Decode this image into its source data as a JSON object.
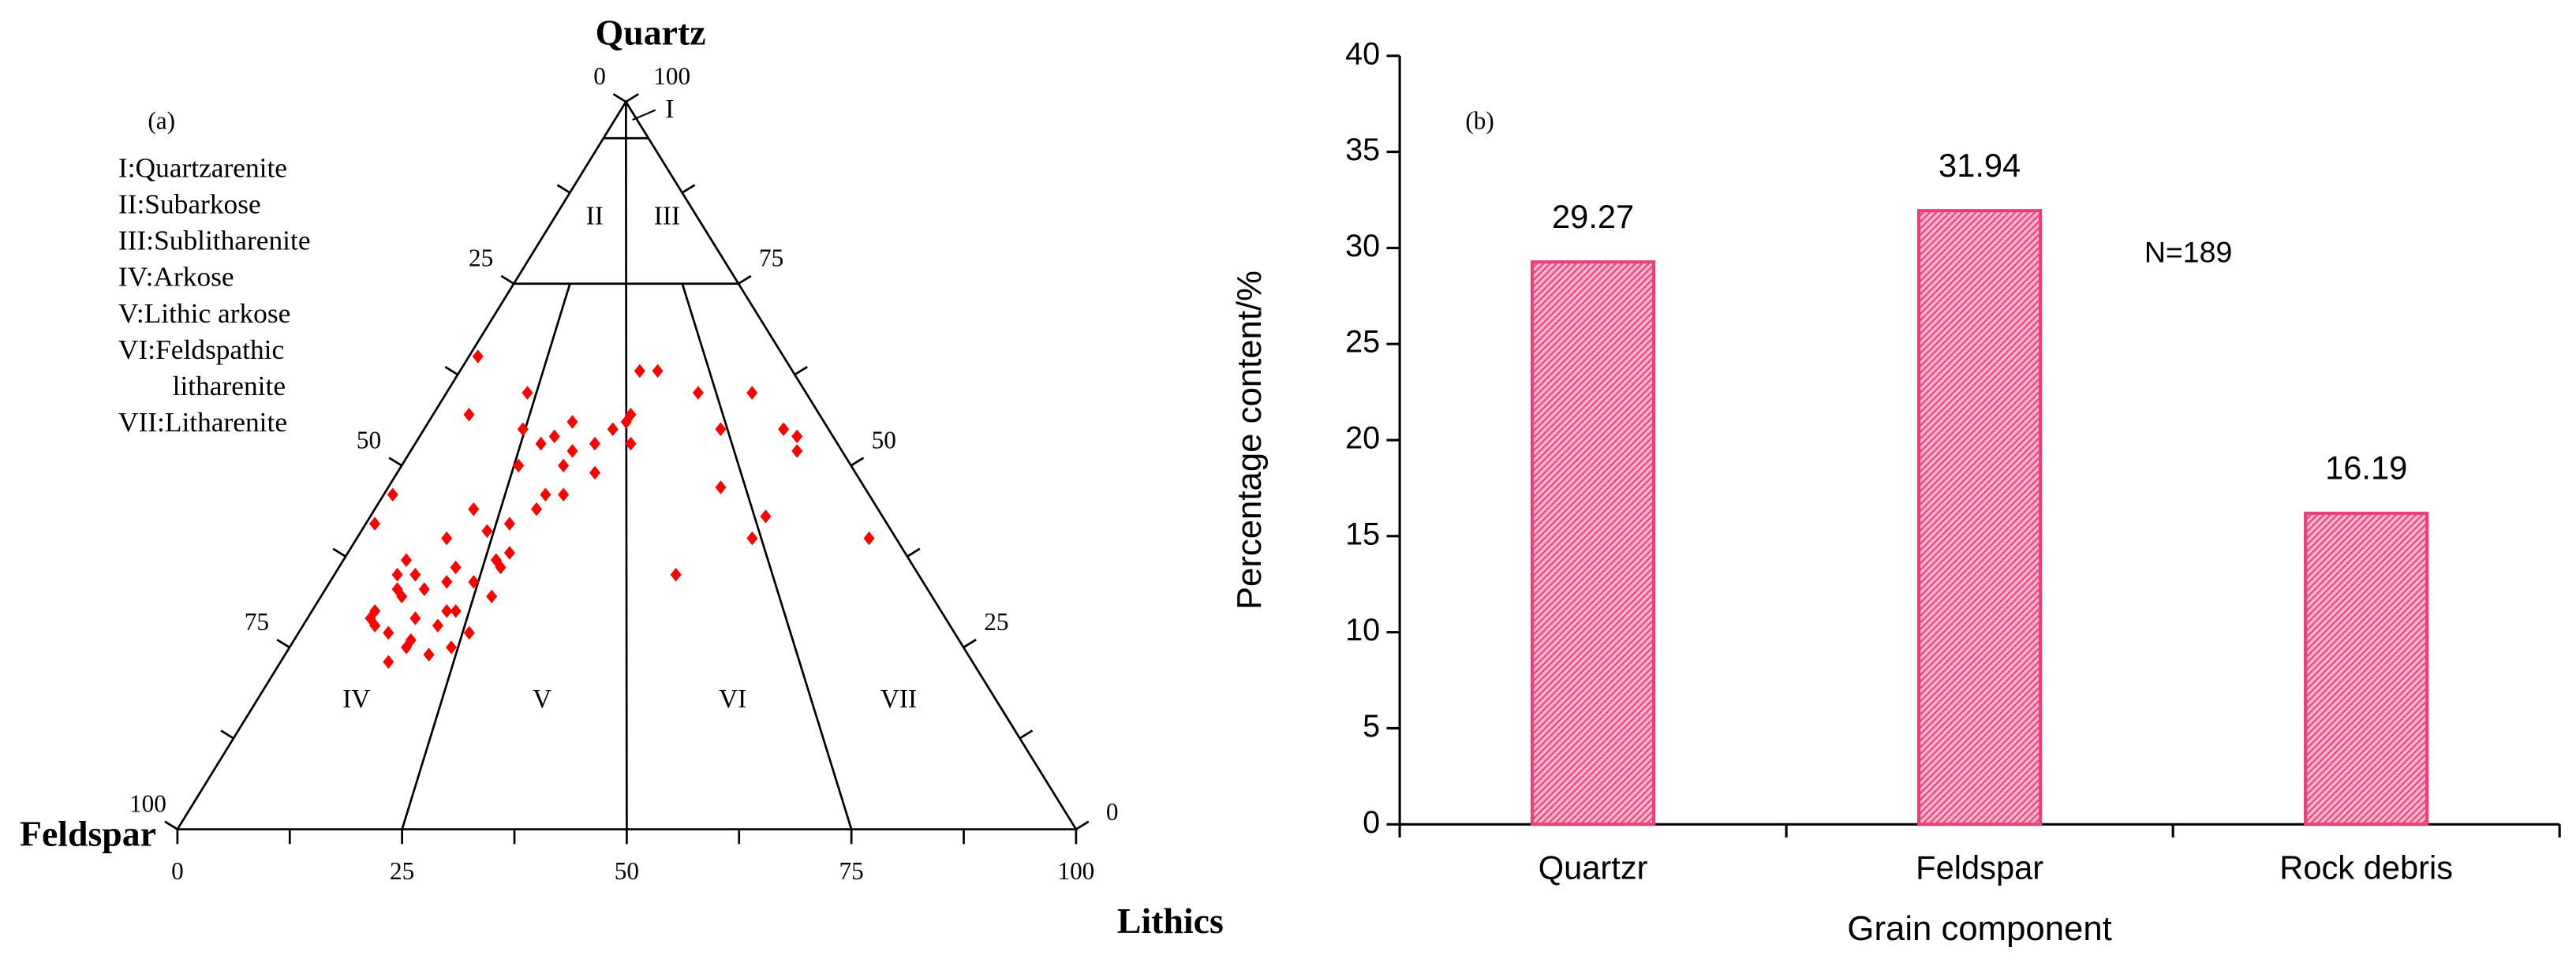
{
  "chart_data": [
    {
      "type": "ternary",
      "panel_label": "(a)",
      "top_name": "Quartz",
      "left_name": "Feldspar",
      "right_name": "Lithics",
      "feldspar_ticks": [
        0,
        25,
        50,
        75,
        100
      ],
      "quartz_ticks": [
        100,
        75,
        50,
        25,
        0
      ],
      "lithics_ticks": [
        0,
        25,
        50,
        75,
        100
      ],
      "minor_ticks": [
        12.5,
        37.5,
        62.5,
        87.5
      ],
      "quartz_boundaries": [
        75,
        95
      ],
      "ratio_boundaries": [
        25,
        50,
        75
      ],
      "region_labels": [
        "I",
        "II",
        "III",
        "IV",
        "V",
        "VI",
        "VII"
      ],
      "legend": [
        "I:Quartzarenite",
        "II:Subarkose",
        "III:Sublitharenite",
        "IV:Arkose",
        "V:Lithic arkose",
        "VI:Feldspathic",
        "litharenite",
        "VII:Litharenite"
      ],
      "color": "#ff0000",
      "quartz": [
        65,
        57,
        46,
        42,
        60,
        55,
        54,
        52,
        49,
        46,
        42,
        37,
        44,
        40,
        37,
        35,
        30,
        23,
        26,
        28,
        30,
        33,
        32,
        34,
        34,
        32,
        27,
        25,
        29,
        28,
        50,
        46,
        56,
        56,
        57,
        63,
        63,
        60,
        60,
        55,
        55,
        54,
        52,
        47,
        43,
        40,
        40,
        35,
        53,
        55,
        53,
        44,
        36,
        24,
        25,
        27,
        33,
        29,
        53,
        50,
        38,
        41,
        36,
        35,
        30
      ],
      "feldspar": [
        34,
        39,
        53,
        57,
        31,
        34,
        31,
        30,
        29,
        36,
        42,
        46,
        45,
        50,
        56,
        58,
        63,
        65,
        61,
        57,
        54,
        56,
        59,
        53,
        50,
        49,
        54,
        57,
        59,
        64,
        37,
        34,
        28,
        22,
        21,
        17,
        15,
        12,
        6,
        12,
        5,
        4,
        5,
        16,
        13,
        16,
        3,
        27,
        23,
        24,
        33,
        38,
        46,
        60,
        62,
        63,
        59,
        64,
        27,
        32,
        44,
        45,
        51,
        56,
        55
      ],
      "lithics": [
        1,
        4,
        1,
        1,
        9,
        11,
        15,
        18,
        22,
        18,
        16,
        17,
        11,
        10,
        7,
        7,
        7,
        12,
        13,
        15,
        16,
        11,
        9,
        13,
        16,
        19,
        19,
        18,
        12,
        8,
        13,
        20,
        16,
        22,
        22,
        20,
        22,
        28,
        34,
        33,
        40,
        42,
        43,
        37,
        44,
        44,
        57,
        38,
        24,
        21,
        14,
        18,
        18,
        16,
        13,
        10,
        8,
        7,
        20,
        18,
        18,
        14,
        13,
        9,
        15
      ]
    },
    {
      "type": "bar",
      "panel_label": "(b)",
      "annotation": "N=189",
      "categories": [
        "Quartzr",
        "Feldspar",
        "Rock debris"
      ],
      "values": [
        29.27,
        31.94,
        16.19
      ],
      "color": "#e8407a",
      "x_label": "Grain component",
      "y_label": "Percentage content/%",
      "ylim": [
        0,
        40
      ],
      "yticks": [
        0,
        5,
        10,
        15,
        20,
        25,
        30,
        35,
        40
      ]
    }
  ]
}
